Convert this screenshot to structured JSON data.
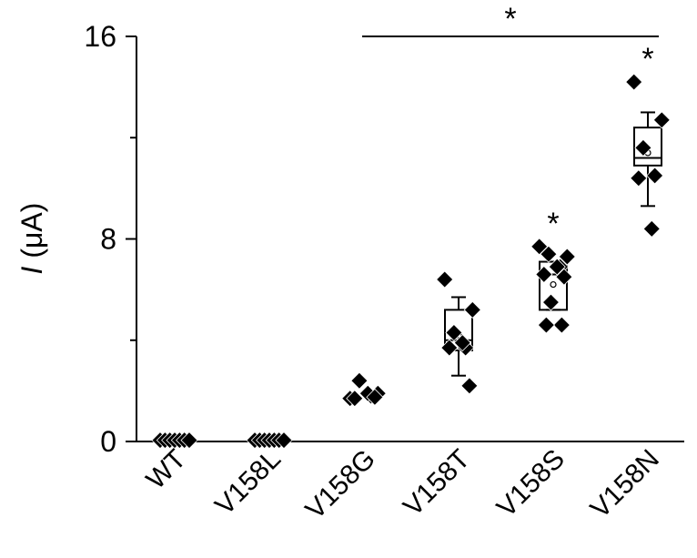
{
  "chart_data": {
    "type": "scatter",
    "ylabel": {
      "italic": "I",
      "rest": " (μA)"
    },
    "ylim": [
      0,
      16
    ],
    "yticks": [
      0,
      8,
      16
    ],
    "ytick_labels": [
      "0",
      "8",
      "16"
    ],
    "categories": [
      "WT",
      "V158L",
      "V158G",
      "V158T",
      "V158S",
      "V158N"
    ],
    "groups": [
      {
        "name": "WT",
        "points": [
          0.05,
          0.05,
          0.05,
          0.05,
          0.05,
          0.05,
          0.05
        ],
        "box": null
      },
      {
        "name": "V158L",
        "points": [
          0.05,
          0.05,
          0.05,
          0.05,
          0.05,
          0.05,
          0.05
        ],
        "box": null
      },
      {
        "name": "V158G",
        "points": [
          1.7,
          1.9,
          2.4,
          1.8,
          1.7,
          1.9,
          1.75
        ],
        "box": null
      },
      {
        "name": "V158T",
        "points": [
          6.4,
          5.2,
          4.3,
          3.7,
          3.7,
          3.9,
          2.2
        ],
        "box": {
          "q1": 3.6,
          "median": 4.0,
          "q3": 5.2,
          "mean": 4.2,
          "whisker_low": 2.6,
          "whisker_high": 5.7
        }
      },
      {
        "name": "V158S",
        "points": [
          7.7,
          7.3,
          7.4,
          6.9,
          6.6,
          6.9,
          6.5,
          5.5,
          4.6,
          4.6
        ],
        "box": {
          "q1": 5.2,
          "median": 6.6,
          "q3": 7.1,
          "mean": 6.2,
          "whisker_low": 5.2,
          "whisker_high": 7.1
        }
      },
      {
        "name": "V158N",
        "points": [
          14.2,
          12.7,
          11.6,
          10.5,
          10.4,
          8.4
        ],
        "box": {
          "q1": 10.9,
          "median": 11.2,
          "q3": 12.4,
          "mean": 11.4,
          "whisker_low": 9.3,
          "whisker_high": 13.0
        }
      }
    ],
    "annotations": [
      {
        "text": "*",
        "group": "V158S"
      },
      {
        "text": "*",
        "group": "V158N"
      },
      {
        "text": "*",
        "bracket": [
          "V158G",
          "V158N"
        ],
        "y": 16
      }
    ]
  }
}
